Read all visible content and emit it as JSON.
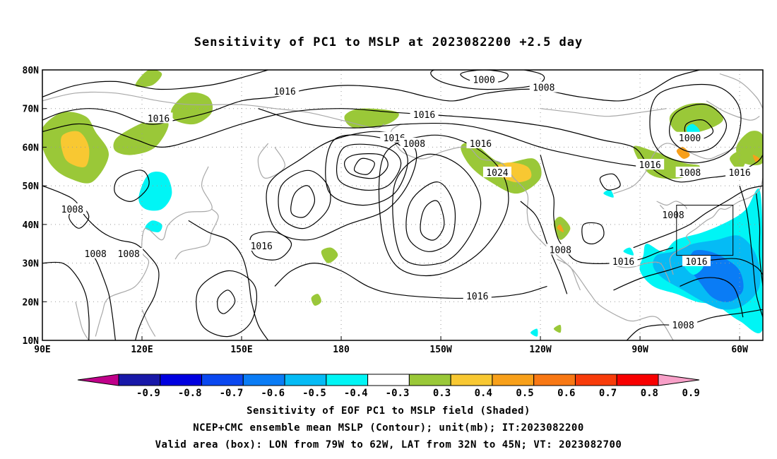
{
  "title": "Sensitivity of PC1 to MSLP at 2023082200 +2.5 day",
  "map": {
    "lat_labels": [
      "80N",
      "70N",
      "60N",
      "50N",
      "40N",
      "30N",
      "20N",
      "10N"
    ],
    "lon_labels": [
      "90E",
      "120E",
      "150E",
      "180",
      "150W",
      "120W",
      "90W",
      "60W"
    ],
    "lat_range": [
      10,
      80
    ],
    "lon_range_deg_east": [
      90,
      307
    ],
    "contour_labels": [
      {
        "text": "1016",
        "lon": 163,
        "lat": 74.5
      },
      {
        "text": "1016",
        "lon": 125,
        "lat": 67.5
      },
      {
        "text": "1000",
        "lon": 223,
        "lat": 77.5
      },
      {
        "text": "1008",
        "lon": 241,
        "lat": 75.5
      },
      {
        "text": "1016",
        "lon": 205,
        "lat": 68.5
      },
      {
        "text": "1016",
        "lon": 196,
        "lat": 62.5
      },
      {
        "text": "1008",
        "lon": 202,
        "lat": 61
      },
      {
        "text": "1016",
        "lon": 222,
        "lat": 61
      },
      {
        "text": "1024",
        "lon": 227,
        "lat": 53.5
      },
      {
        "text": "1016",
        "lon": 273,
        "lat": 55.5
      },
      {
        "text": "1000",
        "lon": 285,
        "lat": 62.5
      },
      {
        "text": "1008",
        "lon": 285,
        "lat": 53.5
      },
      {
        "text": "1016",
        "lon": 300,
        "lat": 53.5
      },
      {
        "text": "1008",
        "lon": 99,
        "lat": 44
      },
      {
        "text": "1008",
        "lon": 280,
        "lat": 42.5
      },
      {
        "text": "1016",
        "lon": 156,
        "lat": 34.5
      },
      {
        "text": "1008",
        "lon": 106,
        "lat": 32.5
      },
      {
        "text": "1008",
        "lon": 116,
        "lat": 32.5
      },
      {
        "text": "1008",
        "lon": 246,
        "lat": 33.5
      },
      {
        "text": "1016",
        "lon": 265,
        "lat": 30.5
      },
      {
        "text": "1016",
        "lon": 287,
        "lat": 30.5
      },
      {
        "text": "1016",
        "lon": 221,
        "lat": 21.5
      },
      {
        "text": "1008",
        "lon": 283,
        "lat": 14
      }
    ],
    "box": {
      "lon": [
        281,
        298
      ],
      "lat": [
        32,
        45
      ]
    }
  },
  "colorbar": {
    "labels": [
      "-0.9",
      "-0.8",
      "-0.7",
      "-0.6",
      "-0.5",
      "-0.4",
      "-0.3",
      "0.3",
      "0.4",
      "0.5",
      "0.6",
      "0.7",
      "0.8",
      "0.9"
    ],
    "colors": [
      "#c0008a",
      "#1818a8",
      "#0000e0",
      "#0a48f0",
      "#0a7cf5",
      "#05bbf5",
      "#00f5f5",
      "#ffffff",
      "#9ac838",
      "#f8c832",
      "#f8a01a",
      "#f87814",
      "#f83c0a",
      "#f80000",
      "#f8a0c8"
    ]
  },
  "footer": {
    "line1": "Sensitivity of EOF PC1 to MSLP field (Shaded)",
    "line2": "NCEP+CMC ensemble mean MSLP (Contour); unit(mb); IT:2023082200",
    "line3": "Valid area (box): LON from 79W to 62W, LAT from 32N to 45N; VT: 2023082700"
  }
}
